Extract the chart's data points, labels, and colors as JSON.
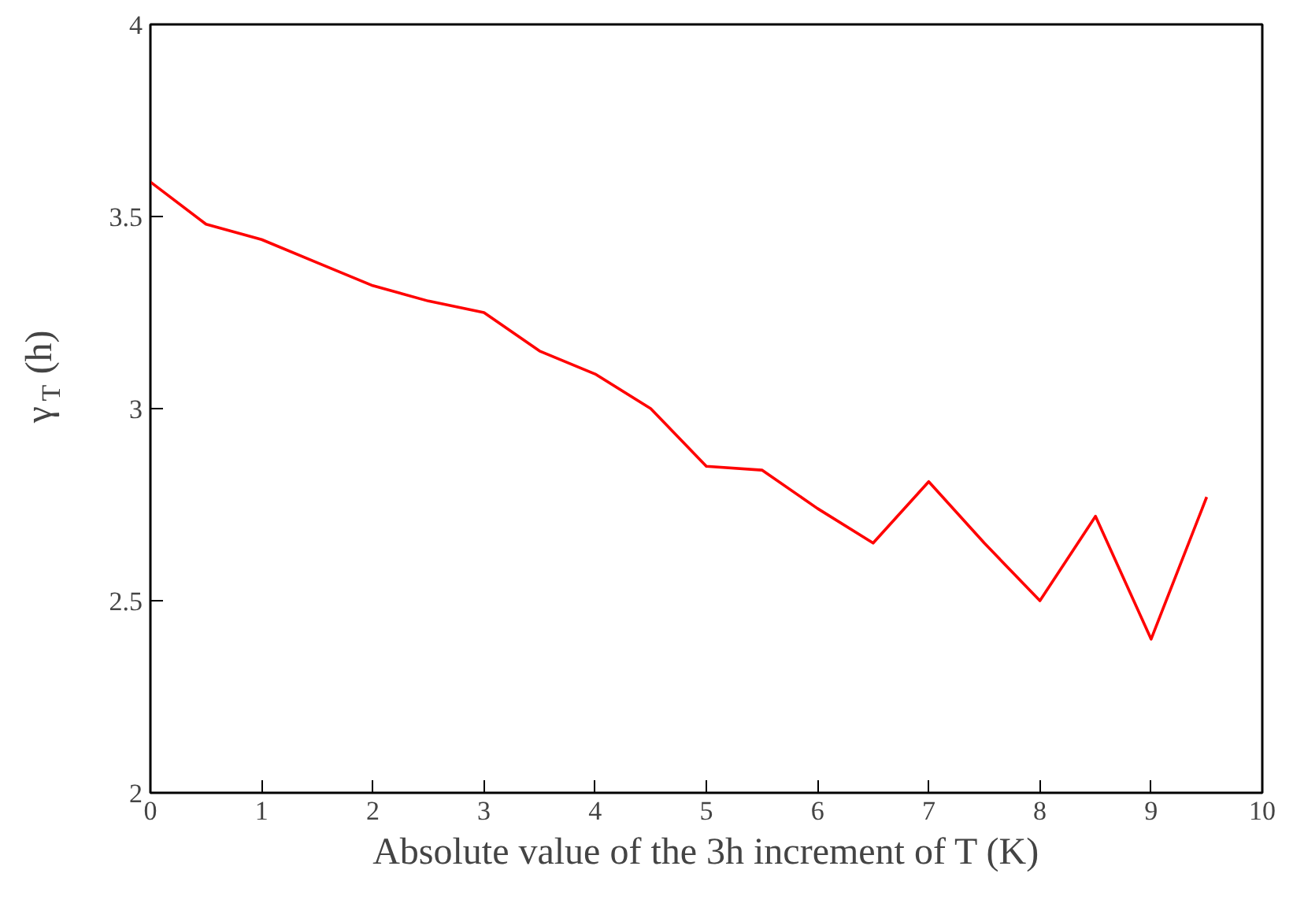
{
  "chart_data": {
    "type": "line",
    "xlabel": "Absolute value of the 3h increment of T (K)",
    "ylabel": "γ$_{T}$ (h)",
    "x": [
      0,
      0.5,
      1,
      1.5,
      2,
      2.5,
      3,
      3.5,
      4,
      4.5,
      5,
      5.5,
      6,
      6.5,
      7,
      7.5,
      8,
      8.5,
      9,
      9.5
    ],
    "series": [
      {
        "color": "#ff0000",
        "values": [
          3.59,
          3.48,
          3.44,
          3.38,
          3.32,
          3.28,
          3.25,
          3.15,
          3.09,
          3.0,
          2.85,
          2.84,
          2.74,
          2.65,
          2.81,
          2.65,
          2.5,
          2.72,
          2.4,
          2.77
        ]
      }
    ],
    "xlim": [
      0,
      10
    ],
    "ylim": [
      2,
      4
    ],
    "xticks": [
      0,
      1,
      2,
      3,
      4,
      5,
      6,
      7,
      8,
      9,
      10
    ],
    "yticks": [
      2,
      {
        "value": 2.5,
        "label": "2.5"
      },
      3,
      {
        "value": 3.5,
        "label": "3.5"
      },
      4
    ],
    "grid": false,
    "marker": "none",
    "line_style": "solid"
  }
}
